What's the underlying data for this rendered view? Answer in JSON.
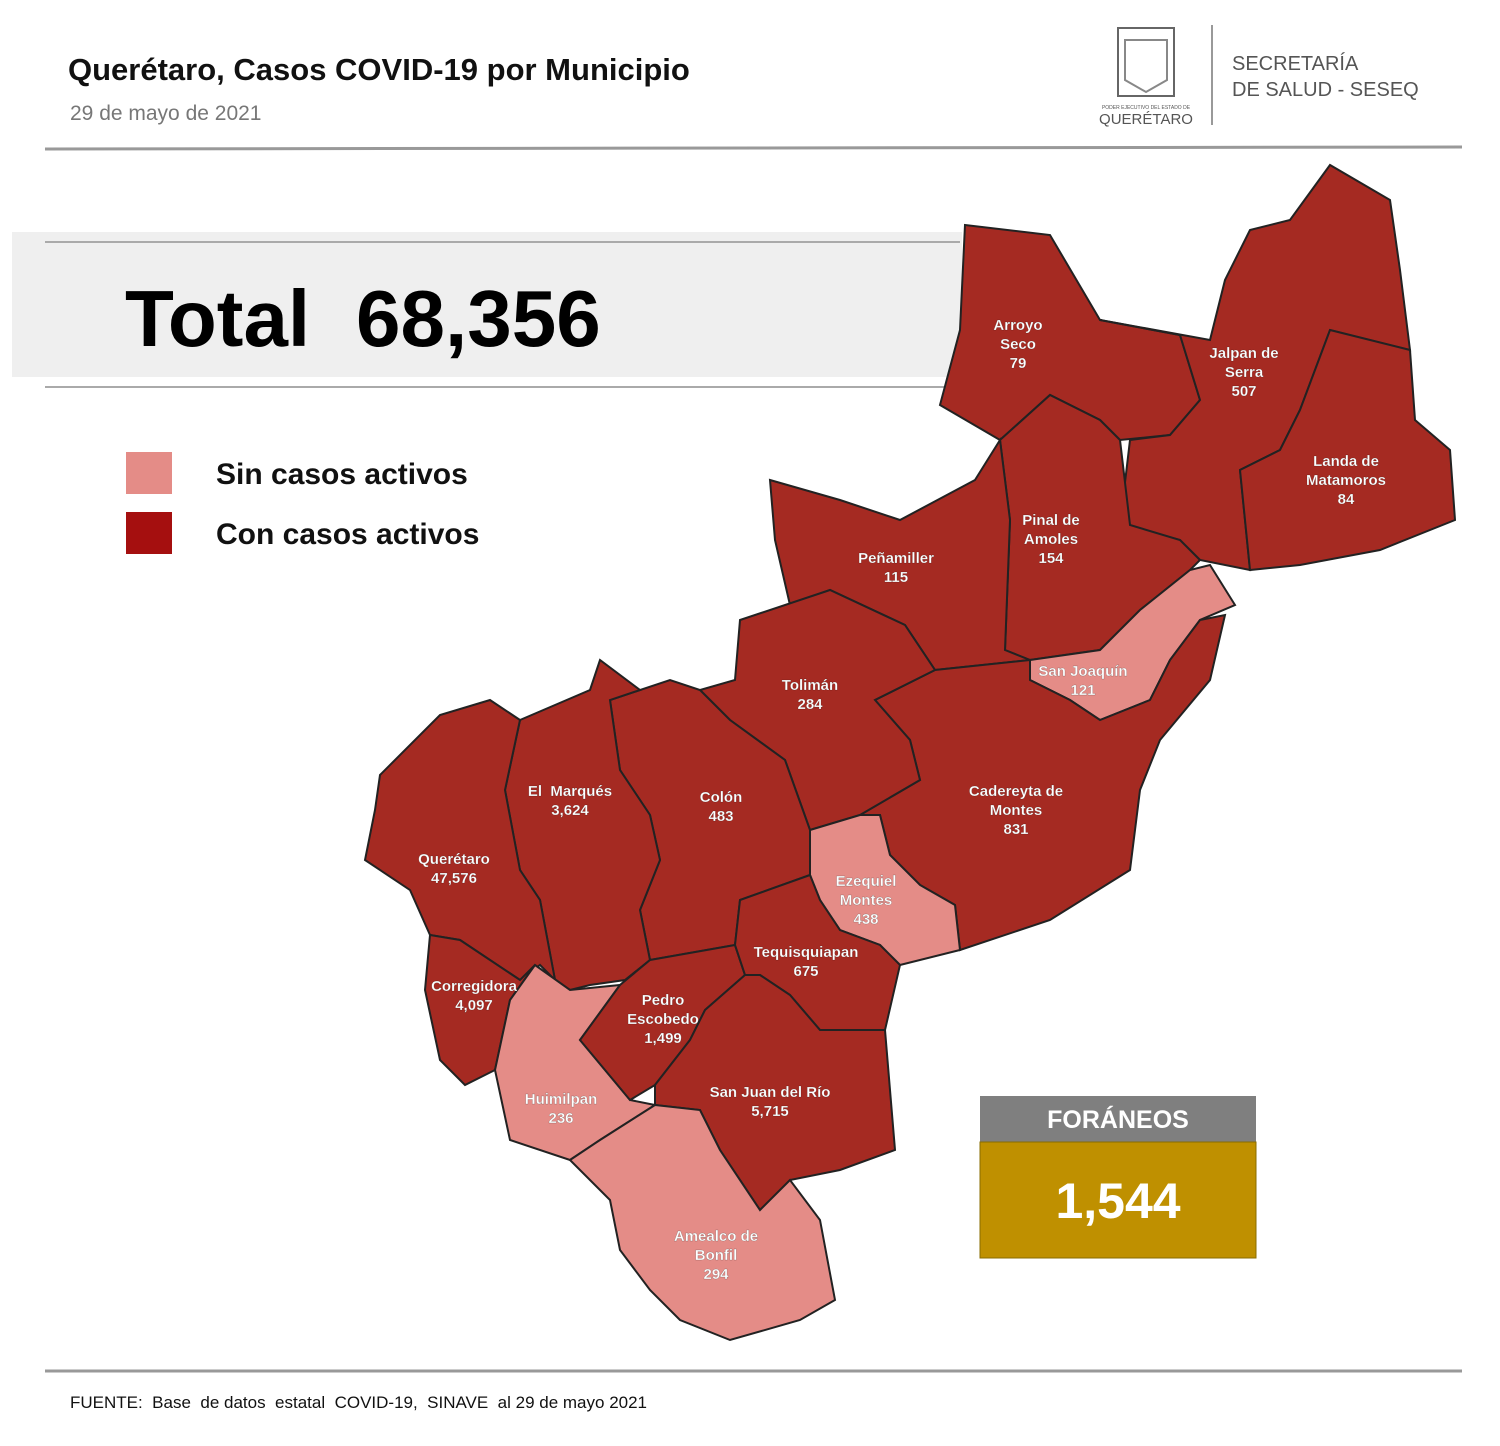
{
  "header": {
    "title": "Querétaro, Casos COVID-19 por Municipio",
    "date": "29 de mayo de 2021",
    "logo_small": "PODER EJECUTIVO DEL ESTADO DE",
    "logo_name": "QUERÉTARO",
    "department": [
      "SECRETARÍA",
      "DE SALUD - SESEQ"
    ]
  },
  "total": {
    "label": "Total",
    "value": "68,356"
  },
  "legend": [
    {
      "label": "Sin casos activos",
      "color": "#e48c87",
      "active": false
    },
    {
      "label": "Con casos activos",
      "color": "#a50f0f",
      "active": true
    }
  ],
  "municipalities": [
    {
      "name_lines": [
        "Arroyo",
        "Seco"
      ],
      "cases": "79",
      "active": true
    },
    {
      "name_lines": [
        "Jalpan de",
        "Serra"
      ],
      "cases": "507",
      "active": true
    },
    {
      "name_lines": [
        "Landa de",
        "Matamoros"
      ],
      "cases": "84",
      "active": true
    },
    {
      "name_lines": [
        "Pinal de",
        "Amoles"
      ],
      "cases": "154",
      "active": true
    },
    {
      "name_lines": [
        "Peñamiller"
      ],
      "cases": "115",
      "active": true
    },
    {
      "name_lines": [
        "San Joaquín"
      ],
      "cases": "121",
      "active": false
    },
    {
      "name_lines": [
        "Cadereyta de",
        "Montes"
      ],
      "cases": "831",
      "active": true
    },
    {
      "name_lines": [
        "Tolimán"
      ],
      "cases": "284",
      "active": true
    },
    {
      "name_lines": [
        "Colón"
      ],
      "cases": "483",
      "active": true
    },
    {
      "name_lines": [
        "Ezequiel",
        "Montes"
      ],
      "cases": "438",
      "active": false
    },
    {
      "name_lines": [
        "El  Marqués"
      ],
      "cases": "3,624",
      "active": true
    },
    {
      "name_lines": [
        "Querétaro"
      ],
      "cases": "47,576",
      "active": true
    },
    {
      "name_lines": [
        "Corregidora"
      ],
      "cases": "4,097",
      "active": true
    },
    {
      "name_lines": [
        "Huimilpan"
      ],
      "cases": "236",
      "active": false
    },
    {
      "name_lines": [
        "Pedro",
        "Escobedo"
      ],
      "cases": "1,499",
      "active": true
    },
    {
      "name_lines": [
        "Tequisquiapan"
      ],
      "cases": "675",
      "active": true
    },
    {
      "name_lines": [
        "San Juan del Río"
      ],
      "cases": "5,715",
      "active": true
    },
    {
      "name_lines": [
        "Amealco de",
        "Bonfil"
      ],
      "cases": "294",
      "active": false
    }
  ],
  "foraneos": {
    "label": "FORÁNEOS",
    "value": "1,544"
  },
  "source": "FUENTE:  Base  de datos  estatal  COVID-19,  SINAVE  al 29 de mayo 2021"
}
